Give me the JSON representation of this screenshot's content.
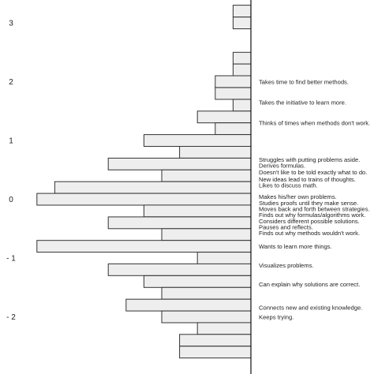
{
  "chart_data": {
    "type": "bar",
    "orientation": "horizontal",
    "title": "",
    "xlabel": "",
    "ylabel": "",
    "ylim": [
      -2.6,
      3.3
    ],
    "yticks": [
      {
        "value": 3,
        "label": "3"
      },
      {
        "value": 2,
        "label": "2"
      },
      {
        "value": 1,
        "label": "1"
      },
      {
        "value": 0,
        "label": "0"
      },
      {
        "value": -1,
        "label": "- 1"
      },
      {
        "value": -2,
        "label": "- 2"
      }
    ],
    "bin_width": 0.2,
    "bars": [
      {
        "y": 3.2,
        "count": 1
      },
      {
        "y": 3.0,
        "count": 1
      },
      {
        "y": 2.4,
        "count": 1
      },
      {
        "y": 2.2,
        "count": 1
      },
      {
        "y": 2.0,
        "count": 2
      },
      {
        "y": 1.8,
        "count": 2
      },
      {
        "y": 1.6,
        "count": 1
      },
      {
        "y": 1.4,
        "count": 3
      },
      {
        "y": 1.2,
        "count": 2
      },
      {
        "y": 1.0,
        "count": 6
      },
      {
        "y": 0.8,
        "count": 4
      },
      {
        "y": 0.6,
        "count": 8
      },
      {
        "y": 0.4,
        "count": 5
      },
      {
        "y": 0.2,
        "count": 11
      },
      {
        "y": 0.0,
        "count": 12
      },
      {
        "y": -0.2,
        "count": 6
      },
      {
        "y": -0.4,
        "count": 8
      },
      {
        "y": -0.6,
        "count": 5
      },
      {
        "y": -0.8,
        "count": 12
      },
      {
        "y": -1.0,
        "count": 3
      },
      {
        "y": -1.2,
        "count": 8
      },
      {
        "y": -1.4,
        "count": 6
      },
      {
        "y": -1.6,
        "count": 5
      },
      {
        "y": -1.8,
        "count": 7
      },
      {
        "y": -2.0,
        "count": 5
      },
      {
        "y": -2.2,
        "count": 3
      },
      {
        "y": -2.4,
        "count": 4
      },
      {
        "y": -2.6,
        "count": 4
      }
    ],
    "items": [
      {
        "y": 2.0,
        "label": "Takes time to find better methods."
      },
      {
        "y": 1.65,
        "label": "Takes the initiative to learn more."
      },
      {
        "y": 1.3,
        "label": "Thinks of times when methods don't work."
      },
      {
        "y": 0.68,
        "label": "Struggles with putting problems aside."
      },
      {
        "y": 0.58,
        "label": "Derives formulas."
      },
      {
        "y": 0.46,
        "label": "Doesn't like to be told exactly what to do."
      },
      {
        "y": 0.34,
        "label": "New ideas lead to trains of thoughts."
      },
      {
        "y": 0.24,
        "label": "Likes to discuss math."
      },
      {
        "y": 0.05,
        "label": "Makes his/her own problems."
      },
      {
        "y": -0.06,
        "label": "Studies proofs until they make sense."
      },
      {
        "y": -0.16,
        "label": "Moves back and forth between strategies."
      },
      {
        "y": -0.26,
        "label": "Finds out why formulas/algorithms work."
      },
      {
        "y": -0.37,
        "label": "Considers different possible solutions."
      },
      {
        "y": -0.47,
        "label": "Pauses and reflects."
      },
      {
        "y": -0.57,
        "label": "Finds out why methods wouldn't work."
      },
      {
        "y": -0.8,
        "label": "Wants to learn more things."
      },
      {
        "y": -1.12,
        "label": "Visualizes problems."
      },
      {
        "y": -1.44,
        "label": "Can explain why solutions are correct."
      },
      {
        "y": -1.84,
        "label": "Connects new and existing knowledge."
      },
      {
        "y": -2.0,
        "label": "Keeps trying."
      }
    ]
  }
}
